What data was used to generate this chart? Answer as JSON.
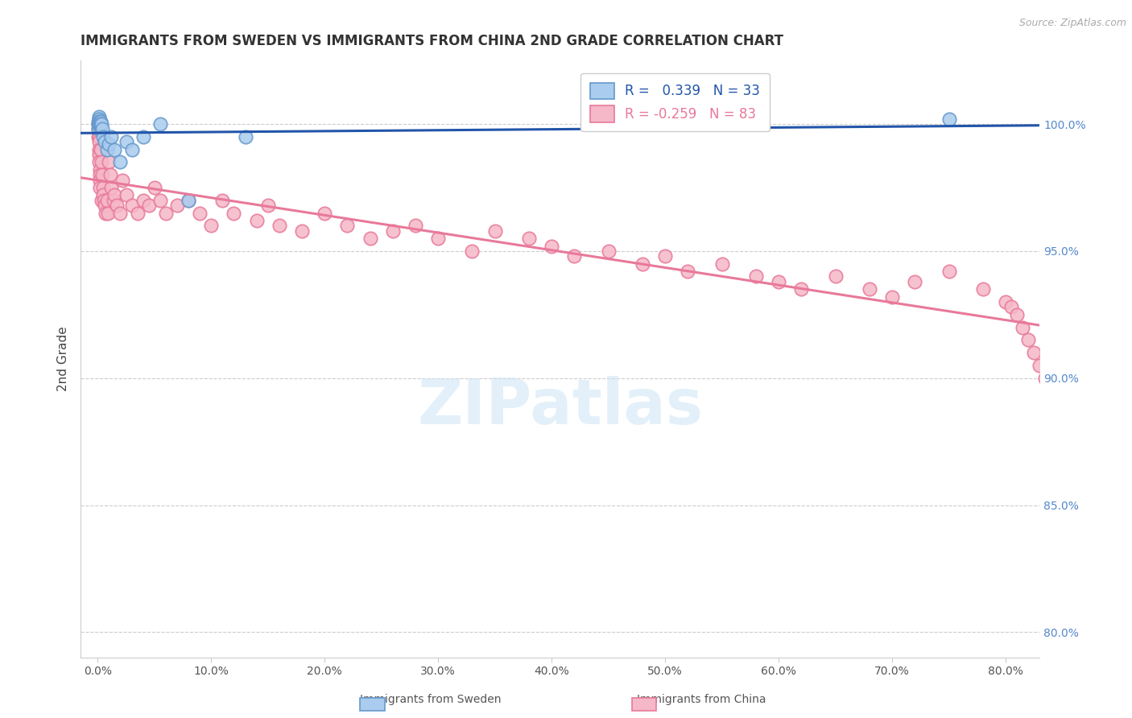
{
  "title": "IMMIGRANTS FROM SWEDEN VS IMMIGRANTS FROM CHINA 2ND GRADE CORRELATION CHART",
  "source": "Source: ZipAtlas.com",
  "ylabel": "2nd Grade",
  "watermark": "ZIPatlas",
  "legend": {
    "sweden": {
      "R": 0.339,
      "N": 33,
      "color": "#6699cc",
      "fill": "#aaccee"
    },
    "china": {
      "R": -0.259,
      "N": 83,
      "color": "#e8799a",
      "fill": "#f5b8c8"
    }
  },
  "yticks": [
    80.0,
    85.0,
    90.0,
    95.0,
    100.0
  ],
  "xticks": [
    0,
    10,
    20,
    30,
    40,
    50,
    60,
    70,
    80
  ],
  "xlim": [
    -1.5,
    83
  ],
  "ylim": [
    79.0,
    102.5
  ],
  "background_color": "#ffffff",
  "grid_color": "#cccccc",
  "title_color": "#333333",
  "axis_label_color": "#555555",
  "right_axis_color": "#5588cc",
  "source_color": "#aaaaaa",
  "sweden_line_color": "#2255aa",
  "china_line_color": "#e8799a",
  "sweden_x": [
    0.05,
    0.07,
    0.08,
    0.09,
    0.1,
    0.12,
    0.13,
    0.14,
    0.15,
    0.16,
    0.17,
    0.18,
    0.2,
    0.22,
    0.25,
    0.28,
    0.3,
    0.4,
    0.5,
    0.6,
    0.8,
    1.0,
    1.2,
    1.5,
    2.0,
    2.5,
    3.0,
    4.0,
    5.5,
    8.0,
    13.0,
    57.0,
    75.0
  ],
  "sweden_y": [
    99.8,
    100.0,
    100.1,
    100.2,
    100.3,
    100.2,
    100.1,
    100.0,
    100.0,
    100.1,
    100.0,
    99.9,
    100.0,
    100.0,
    100.1,
    100.0,
    100.0,
    99.8,
    99.5,
    99.3,
    99.0,
    99.2,
    99.5,
    99.0,
    98.5,
    99.3,
    99.0,
    99.5,
    100.0,
    97.0,
    99.5,
    100.0,
    100.2
  ],
  "china_x": [
    0.05,
    0.07,
    0.08,
    0.09,
    0.1,
    0.12,
    0.13,
    0.14,
    0.15,
    0.16,
    0.18,
    0.2,
    0.22,
    0.25,
    0.3,
    0.35,
    0.4,
    0.45,
    0.5,
    0.55,
    0.6,
    0.7,
    0.8,
    0.9,
    1.0,
    1.1,
    1.2,
    1.4,
    1.5,
    1.7,
    2.0,
    2.2,
    2.5,
    3.0,
    3.5,
    4.0,
    4.5,
    5.0,
    5.5,
    6.0,
    7.0,
    8.0,
    9.0,
    10.0,
    11.0,
    12.0,
    14.0,
    15.0,
    16.0,
    18.0,
    20.0,
    22.0,
    24.0,
    26.0,
    28.0,
    30.0,
    33.0,
    35.0,
    38.0,
    40.0,
    42.0,
    45.0,
    48.0,
    50.0,
    52.0,
    55.0,
    58.0,
    60.0,
    62.0,
    65.0,
    68.0,
    70.0,
    72.0,
    75.0,
    78.0,
    80.0,
    80.5,
    81.0,
    81.5,
    82.0,
    82.5,
    83.0,
    83.5
  ],
  "china_y": [
    99.5,
    99.8,
    100.0,
    99.7,
    99.5,
    99.3,
    99.0,
    98.8,
    98.5,
    98.2,
    98.0,
    97.8,
    97.5,
    99.0,
    98.5,
    97.0,
    98.0,
    97.5,
    97.2,
    97.0,
    96.8,
    96.5,
    97.0,
    96.5,
    98.5,
    98.0,
    97.5,
    97.0,
    97.2,
    96.8,
    96.5,
    97.8,
    97.2,
    96.8,
    96.5,
    97.0,
    96.8,
    97.5,
    97.0,
    96.5,
    96.8,
    97.0,
    96.5,
    96.0,
    97.0,
    96.5,
    96.2,
    96.8,
    96.0,
    95.8,
    96.5,
    96.0,
    95.5,
    95.8,
    96.0,
    95.5,
    95.0,
    95.8,
    95.5,
    95.2,
    94.8,
    95.0,
    94.5,
    94.8,
    94.2,
    94.5,
    94.0,
    93.8,
    93.5,
    94.0,
    93.5,
    93.2,
    93.8,
    94.2,
    93.5,
    93.0,
    92.8,
    92.5,
    92.0,
    91.5,
    91.0,
    90.5,
    90.0
  ]
}
